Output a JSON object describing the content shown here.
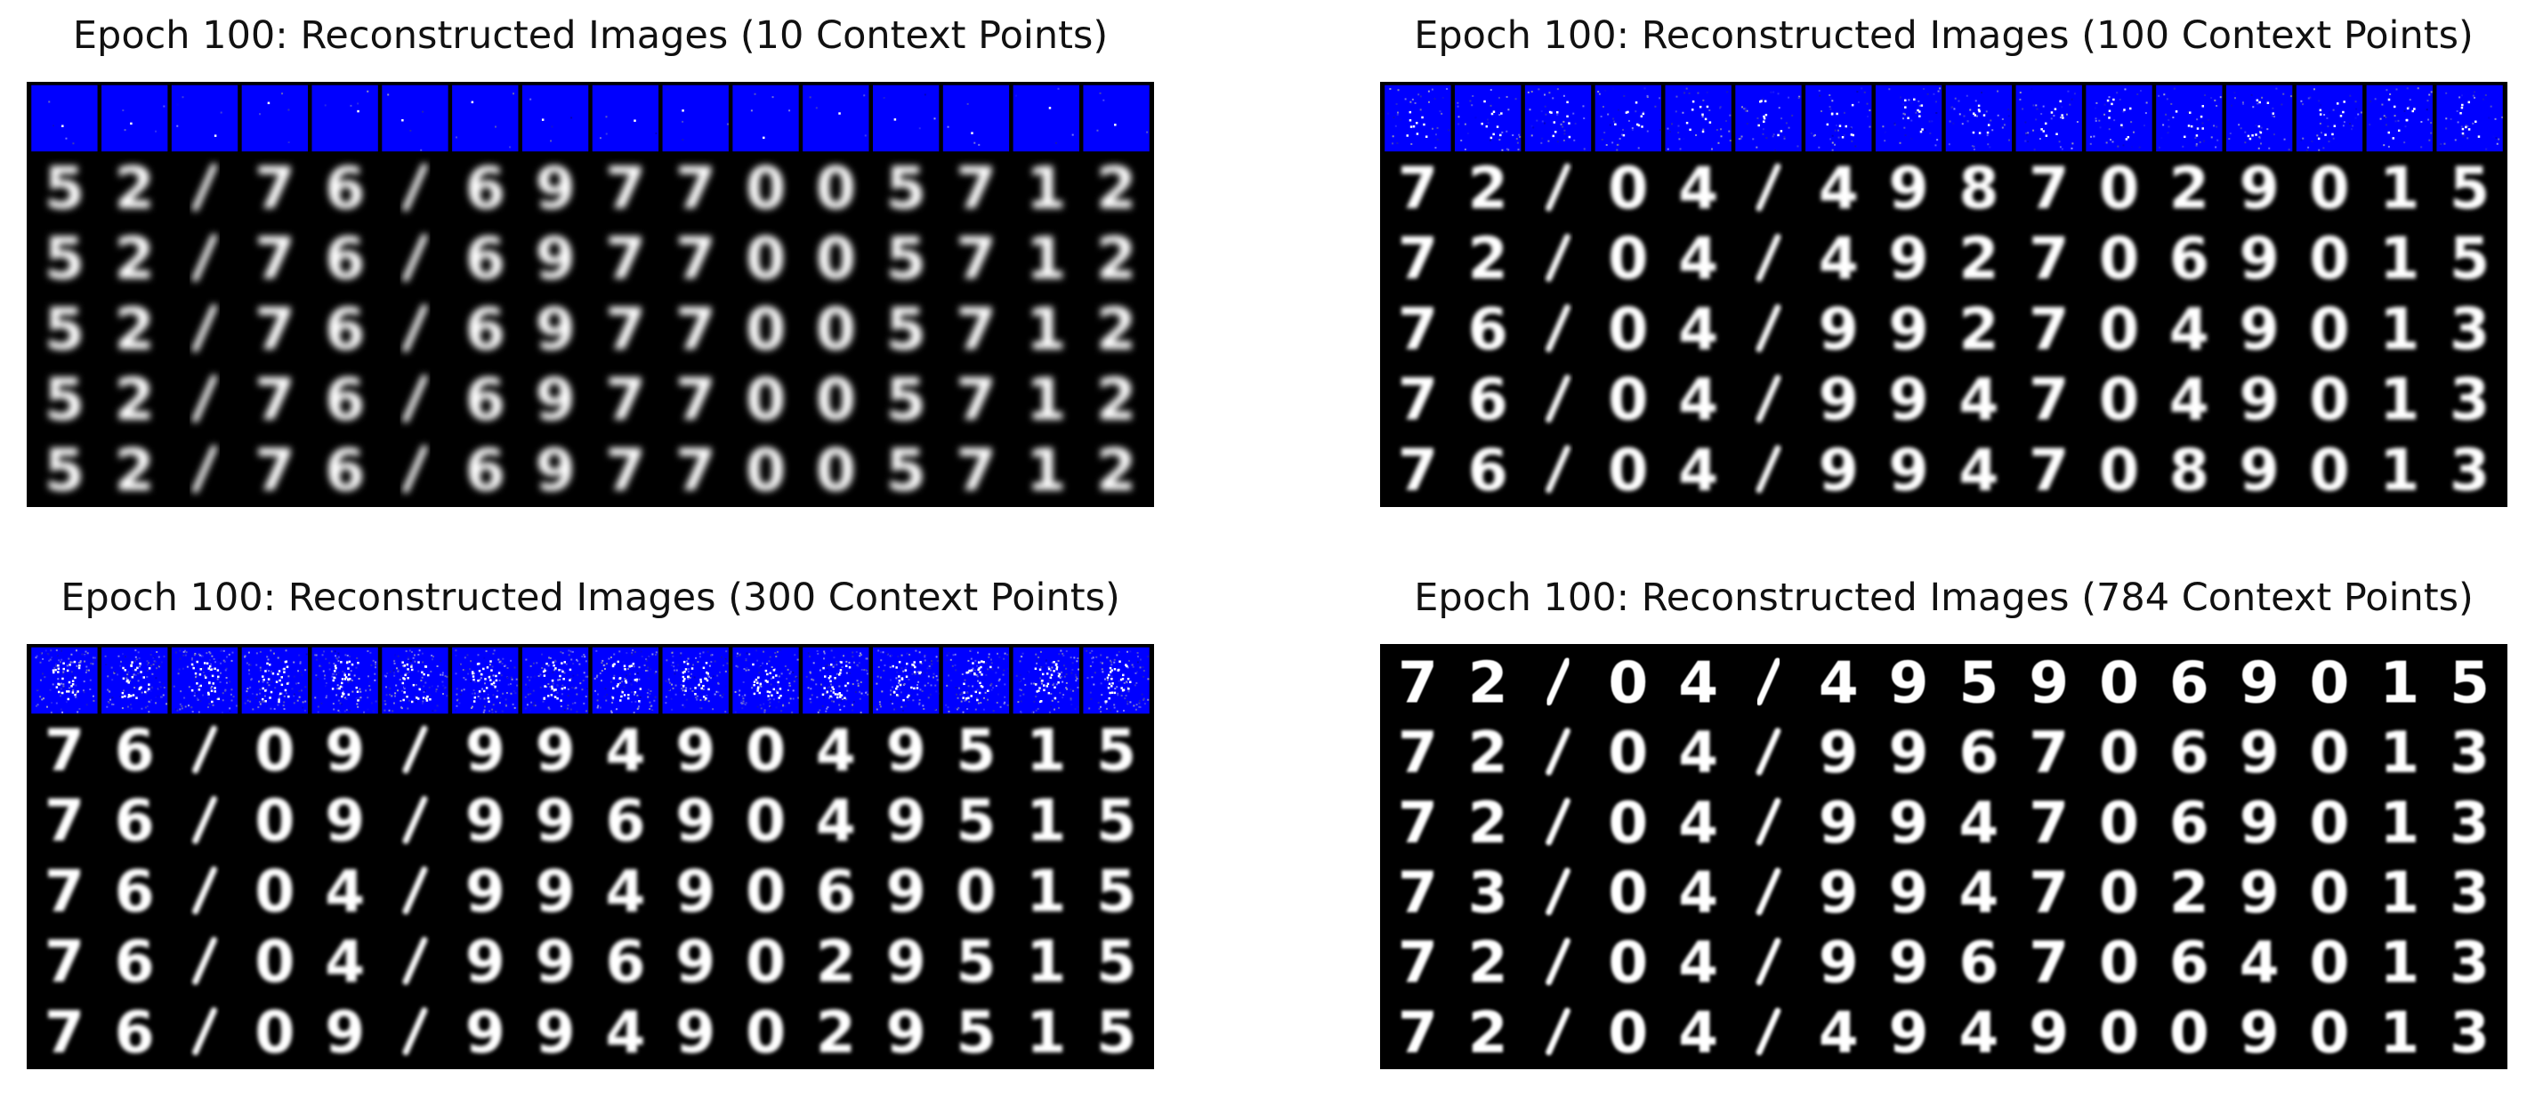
{
  "figure": {
    "panels": [
      {
        "title": "Epoch 100: Reconstructed Images (10 Context Points)",
        "context_points": 10,
        "digits": [
          [
            "5",
            "2",
            "/",
            "7",
            "6",
            "/",
            "6",
            "9",
            "7",
            "7",
            "0",
            "0",
            "5",
            "7",
            "1",
            "2"
          ],
          [
            "5",
            "2",
            "/",
            "7",
            "6",
            "/",
            "6",
            "9",
            "7",
            "7",
            "0",
            "0",
            "5",
            "7",
            "1",
            "2"
          ],
          [
            "5",
            "2",
            "/",
            "7",
            "6",
            "/",
            "6",
            "9",
            "7",
            "7",
            "0",
            "0",
            "5",
            "7",
            "1",
            "2"
          ],
          [
            "5",
            "2",
            "/",
            "7",
            "6",
            "/",
            "6",
            "9",
            "7",
            "7",
            "0",
            "0",
            "5",
            "7",
            "1",
            "2"
          ],
          [
            "5",
            "2",
            "/",
            "7",
            "6",
            "/",
            "6",
            "9",
            "7",
            "7",
            "0",
            "0",
            "5",
            "7",
            "1",
            "2"
          ]
        ],
        "blur": 4
      },
      {
        "title": "Epoch 100: Reconstructed Images (100 Context Points)",
        "context_points": 100,
        "digits": [
          [
            "7",
            "2",
            "/",
            "0",
            "4",
            "/",
            "4",
            "9",
            "8",
            "7",
            "0",
            "2",
            "9",
            "0",
            "1",
            "5"
          ],
          [
            "7",
            "2",
            "/",
            "0",
            "4",
            "/",
            "4",
            "9",
            "2",
            "7",
            "0",
            "6",
            "9",
            "0",
            "1",
            "5"
          ],
          [
            "7",
            "6",
            "/",
            "0",
            "4",
            "/",
            "9",
            "9",
            "2",
            "7",
            "0",
            "4",
            "9",
            "0",
            "1",
            "3"
          ],
          [
            "7",
            "6",
            "/",
            "0",
            "4",
            "/",
            "9",
            "9",
            "4",
            "7",
            "0",
            "4",
            "9",
            "0",
            "1",
            "3"
          ],
          [
            "7",
            "6",
            "/",
            "0",
            "4",
            "/",
            "9",
            "9",
            "4",
            "7",
            "0",
            "8",
            "9",
            "0",
            "1",
            "3"
          ]
        ],
        "blur": 2.5
      },
      {
        "title": "Epoch 100: Reconstructed Images (300 Context Points)",
        "context_points": 300,
        "digits": [
          [
            "7",
            "6",
            "/",
            "0",
            "9",
            "/",
            "9",
            "9",
            "4",
            "9",
            "0",
            "4",
            "9",
            "5",
            "1",
            "5"
          ],
          [
            "7",
            "6",
            "/",
            "0",
            "9",
            "/",
            "9",
            "9",
            "6",
            "9",
            "0",
            "4",
            "9",
            "5",
            "1",
            "5"
          ],
          [
            "7",
            "6",
            "/",
            "0",
            "4",
            "/",
            "9",
            "9",
            "4",
            "9",
            "0",
            "6",
            "9",
            "0",
            "1",
            "5"
          ],
          [
            "7",
            "6",
            "/",
            "0",
            "4",
            "/",
            "9",
            "9",
            "6",
            "9",
            "0",
            "2",
            "9",
            "5",
            "1",
            "5"
          ],
          [
            "7",
            "6",
            "/",
            "0",
            "9",
            "/",
            "9",
            "9",
            "4",
            "9",
            "0",
            "2",
            "9",
            "5",
            "1",
            "5"
          ]
        ],
        "blur": 2
      },
      {
        "title": "Epoch 100: Reconstructed Images (784 Context Points)",
        "context_points": 784,
        "digits": [
          [
            "7",
            "2",
            "/",
            "0",
            "4",
            "/",
            "4",
            "9",
            "5",
            "9",
            "0",
            "6",
            "9",
            "0",
            "1",
            "5"
          ],
          [
            "7",
            "2",
            "/",
            "0",
            "4",
            "/",
            "9",
            "9",
            "6",
            "7",
            "0",
            "6",
            "9",
            "0",
            "1",
            "3"
          ],
          [
            "7",
            "2",
            "/",
            "0",
            "4",
            "/",
            "9",
            "9",
            "4",
            "7",
            "0",
            "6",
            "9",
            "0",
            "1",
            "3"
          ],
          [
            "7",
            "3",
            "/",
            "0",
            "4",
            "/",
            "9",
            "9",
            "4",
            "7",
            "0",
            "2",
            "9",
            "0",
            "1",
            "3"
          ],
          [
            "7",
            "2",
            "/",
            "0",
            "4",
            "/",
            "9",
            "9",
            "6",
            "7",
            "0",
            "6",
            "4",
            "0",
            "1",
            "3"
          ],
          [
            "7",
            "2",
            "/",
            "0",
            "4",
            "/",
            "4",
            "9",
            "4",
            "9",
            "0",
            "0",
            "9",
            "0",
            "1",
            "3"
          ]
        ],
        "blur": 1.5
      }
    ],
    "colors": {
      "context_background": "#0000ff",
      "image_background": "#000000",
      "digit": "#ffffff"
    }
  }
}
